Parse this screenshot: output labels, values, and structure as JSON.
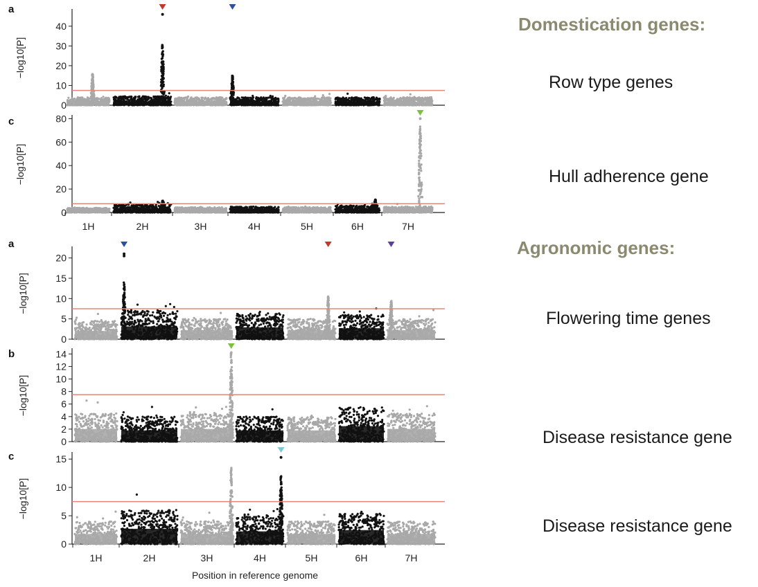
{
  "sections": {
    "domestication_title": "Domestication genes:",
    "agronomic_title": "Agronomic genes:"
  },
  "annotations": {
    "row_type": "Row type genes",
    "hull": "Hull adherence gene",
    "flowering": "Flowering time genes",
    "disease1": "Disease resistance gene",
    "disease2": "Disease resistance gene"
  },
  "chart_data": [
    {
      "type": "scatter",
      "subtype": "manhattan",
      "panel_label": "a",
      "ylabel": "−log10[P]",
      "ylim": [
        0,
        48
      ],
      "yticks": [
        0,
        10,
        20,
        30,
        40
      ],
      "threshold": 7.5,
      "categories": [
        "1H",
        "2H",
        "3H",
        "4H",
        "5H",
        "6H",
        "7H"
      ],
      "show_xaxis_labels": false,
      "baseline_max": [
        4,
        4.5,
        4,
        4,
        4,
        4,
        4
      ],
      "peaks": [
        {
          "chromosome": "1H",
          "pos": 0.6,
          "max": 16
        },
        {
          "chromosome": "2H",
          "pos": 0.85,
          "max": 31,
          "top_points": [
            46
          ]
        },
        {
          "chromosome": "4H",
          "pos": 0.05,
          "max": 15
        }
      ],
      "markers": [
        {
          "chromosome": "2H",
          "pos": 0.85,
          "color": "#c0392b"
        },
        {
          "chromosome": "4H",
          "pos": 0.05,
          "color": "#2c4fa3"
        }
      ]
    },
    {
      "type": "scatter",
      "subtype": "manhattan",
      "panel_label": "c",
      "ylabel": "−log10[P]",
      "ylim": [
        0,
        82
      ],
      "yticks": [
        0,
        20,
        40,
        60,
        80
      ],
      "threshold": 7.5,
      "categories": [
        "1H",
        "2H",
        "3H",
        "4H",
        "5H",
        "6H",
        "7H"
      ],
      "show_xaxis_labels": true,
      "baseline_max": [
        4,
        7,
        4.5,
        5,
        4.5,
        6,
        5
      ],
      "peaks": [
        {
          "chromosome": "2H",
          "pos": 0.85,
          "max": 10
        },
        {
          "chromosome": "6H",
          "pos": 0.9,
          "max": 11
        },
        {
          "chromosome": "7H",
          "pos": 0.75,
          "max": 75,
          "top_points": [
            80
          ]
        }
      ],
      "markers": [
        {
          "chromosome": "7H",
          "pos": 0.75,
          "color": "#7fbf3f"
        }
      ]
    },
    {
      "type": "scatter",
      "subtype": "manhattan",
      "panel_label": "a",
      "ylabel": "−log10[P]",
      "ylim": [
        0,
        22.5
      ],
      "yticks": [
        0,
        5,
        10,
        15,
        20
      ],
      "threshold": 7.5,
      "categories": [
        "1H",
        "2H",
        "3H",
        "4H",
        "5H",
        "6H",
        "7H"
      ],
      "show_xaxis_labels": false,
      "baseline_max": [
        4.5,
        7,
        5,
        6.5,
        5,
        6,
        5
      ],
      "peaks": [
        {
          "chromosome": "2H",
          "pos": 0.05,
          "max": 14,
          "top_points": [
            20.5,
            21
          ]
        },
        {
          "chromosome": "5H",
          "pos": 0.85,
          "max": 10.5
        },
        {
          "chromosome": "7H",
          "pos": 0.08,
          "max": 9.5
        }
      ],
      "markers": [
        {
          "chromosome": "2H",
          "pos": 0.05,
          "color": "#2c4fa3"
        },
        {
          "chromosome": "5H",
          "pos": 0.85,
          "color": "#c0392b"
        },
        {
          "chromosome": "7H",
          "pos": 0.08,
          "color": "#5b3f9e"
        }
      ]
    },
    {
      "type": "scatter",
      "subtype": "manhattan",
      "panel_label": "b",
      "ylabel": "−log10[P]",
      "ylim": [
        0,
        14.7
      ],
      "yticks": [
        0,
        2,
        4,
        6,
        8,
        10,
        12,
        14
      ],
      "threshold": 7.5,
      "categories": [
        "1H",
        "2H",
        "3H",
        "4H",
        "5H",
        "6H",
        "7H"
      ],
      "show_xaxis_labels": false,
      "baseline_max": [
        4.5,
        4,
        4.5,
        4,
        4,
        5.5,
        4.5
      ],
      "peaks": [
        {
          "chromosome": "3H",
          "pos": 0.97,
          "max": 14.3
        }
      ],
      "markers": [
        {
          "chromosome": "3H",
          "pos": 0.97,
          "color": "#7fbf3f"
        }
      ]
    },
    {
      "type": "scatter",
      "subtype": "manhattan",
      "panel_label": "c",
      "ylabel": "−log10[P]",
      "ylim": [
        0,
        16
      ],
      "yticks": [
        0,
        5,
        10,
        15
      ],
      "threshold": 7.5,
      "categories": [
        "1H",
        "2H",
        "3H",
        "4H",
        "5H",
        "6H",
        "7H"
      ],
      "show_xaxis_labels": true,
      "xlabel": "Position in reference genome",
      "baseline_max": [
        4,
        6,
        4,
        5,
        4,
        5.5,
        4
      ],
      "peaks": [
        {
          "chromosome": "3H",
          "pos": 0.97,
          "max": 13.5
        },
        {
          "chromosome": "4H",
          "pos": 0.95,
          "max": 12,
          "top_points": [
            15.3
          ]
        }
      ],
      "markers": [
        {
          "chromosome": "4H",
          "pos": 0.95,
          "color": "#7ec8d8"
        }
      ]
    }
  ]
}
